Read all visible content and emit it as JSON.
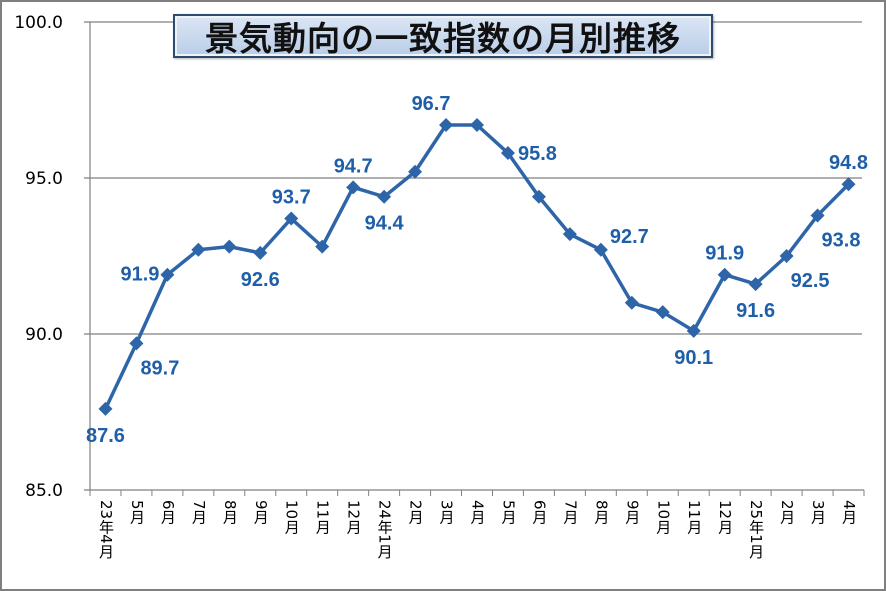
{
  "chart_data": {
    "type": "line",
    "title": "景気動向の一致指数の月別推移",
    "xlabel": "",
    "ylabel": "",
    "ylim": [
      85.0,
      100.0
    ],
    "yticks": [
      "85.0",
      "90.0",
      "95.0",
      "100.0"
    ],
    "ytick_values": [
      85,
      90,
      95,
      100
    ],
    "grid": true,
    "legend": "none",
    "series_color": "#2e65a8",
    "label_color": "#1f5fa8",
    "categories": [
      "23年4月",
      "5月",
      "6月",
      "7月",
      "8月",
      "9月",
      "10月",
      "11月",
      "12月",
      "24年1月",
      "2月",
      "3月",
      "4月",
      "5月",
      "6月",
      "7月",
      "8月",
      "9月",
      "10月",
      "11月",
      "12月",
      "25年1月",
      "2月",
      "3月",
      "4月"
    ],
    "series": [
      {
        "name": "一致指数",
        "values": [
          87.6,
          89.7,
          91.9,
          92.7,
          92.8,
          92.6,
          93.7,
          92.8,
          94.7,
          94.4,
          95.2,
          96.7,
          96.7,
          95.8,
          94.4,
          93.2,
          92.7,
          91.0,
          90.7,
          90.1,
          91.9,
          91.6,
          92.5,
          93.8,
          94.8
        ]
      }
    ],
    "data_labels": [
      {
        "index": 0,
        "text": "87.6",
        "pos": "below"
      },
      {
        "index": 1,
        "text": "89.7",
        "pos": "below-right"
      },
      {
        "index": 2,
        "text": "91.9",
        "pos": "left"
      },
      {
        "index": 5,
        "text": "92.6",
        "pos": "below"
      },
      {
        "index": 6,
        "text": "93.7",
        "pos": "above"
      },
      {
        "index": 8,
        "text": "94.7",
        "pos": "above"
      },
      {
        "index": 9,
        "text": "94.4",
        "pos": "below"
      },
      {
        "index": 11,
        "text": "96.7",
        "pos": "above-right"
      },
      {
        "index": 13,
        "text": "95.8",
        "pos": "right"
      },
      {
        "index": 16,
        "text": "92.7",
        "pos": "right-up"
      },
      {
        "index": 19,
        "text": "90.1",
        "pos": "below"
      },
      {
        "index": 20,
        "text": "91.9",
        "pos": "above"
      },
      {
        "index": 21,
        "text": "91.6",
        "pos": "below"
      },
      {
        "index": 22,
        "text": "92.5",
        "pos": "below-right"
      },
      {
        "index": 23,
        "text": "93.8",
        "pos": "below-right"
      },
      {
        "index": 24,
        "text": "94.8",
        "pos": "above"
      }
    ]
  }
}
